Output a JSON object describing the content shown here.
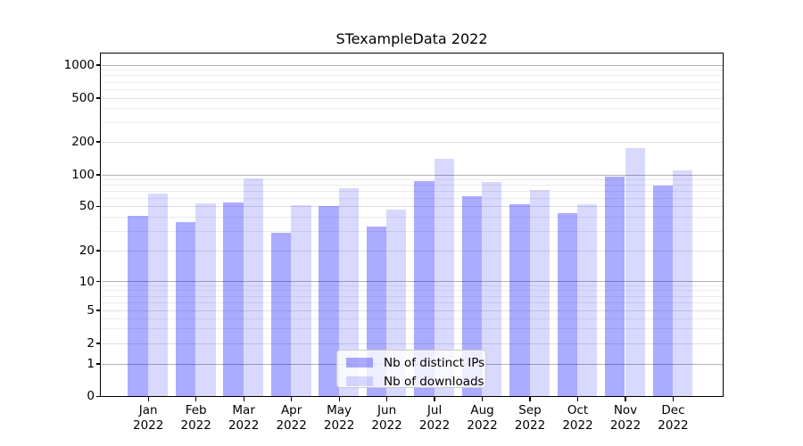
{
  "title": "STexampleData 2022",
  "legend": {
    "items": [
      {
        "label": "Nb of distinct IPs"
      },
      {
        "label": "Nb of downloads"
      }
    ]
  },
  "colors": {
    "ips_bar": "rgba(0,0,255,0.33)",
    "downloads_bar": "rgba(0,0,255,0.15)",
    "grid_major": "#b2b2b2",
    "grid_mid": "#dfdfdf",
    "grid_minor": "#ececec",
    "axis": "#000000",
    "background": "#ffffff"
  },
  "chart_data": {
    "type": "bar",
    "title": "STexampleData 2022",
    "categories": [
      {
        "month": "Jan",
        "year": "2022"
      },
      {
        "month": "Feb",
        "year": "2022"
      },
      {
        "month": "Mar",
        "year": "2022"
      },
      {
        "month": "Apr",
        "year": "2022"
      },
      {
        "month": "May",
        "year": "2022"
      },
      {
        "month": "Jun",
        "year": "2022"
      },
      {
        "month": "Jul",
        "year": "2022"
      },
      {
        "month": "Aug",
        "year": "2022"
      },
      {
        "month": "Sep",
        "year": "2022"
      },
      {
        "month": "Oct",
        "year": "2022"
      },
      {
        "month": "Nov",
        "year": "2022"
      },
      {
        "month": "Dec",
        "year": "2022"
      }
    ],
    "series": [
      {
        "name": "Nb of distinct IPs",
        "color_key": "ips_bar",
        "values": [
          41,
          36,
          54,
          29,
          50,
          33,
          88,
          63,
          52,
          43,
          97,
          79
        ]
      },
      {
        "name": "Nb of downloads",
        "color_key": "downloads_bar",
        "values": [
          66,
          53,
          92,
          51,
          74,
          47,
          140,
          85,
          71,
          52,
          175,
          109
        ]
      }
    ],
    "yscale": "symlog",
    "y_ticks": [
      0,
      1,
      2,
      5,
      10,
      20,
      50,
      100,
      200,
      500,
      1000
    ],
    "y_major_ticks": [
      1,
      10,
      100,
      1000
    ],
    "y_minor_ticks": [
      3,
      4,
      6,
      7,
      8,
      9,
      30,
      40,
      60,
      70,
      80,
      90,
      300,
      400,
      600,
      700,
      800,
      900
    ],
    "ylim": [
      0,
      1400
    ],
    "grid": "both",
    "legend_position": "lower center"
  }
}
